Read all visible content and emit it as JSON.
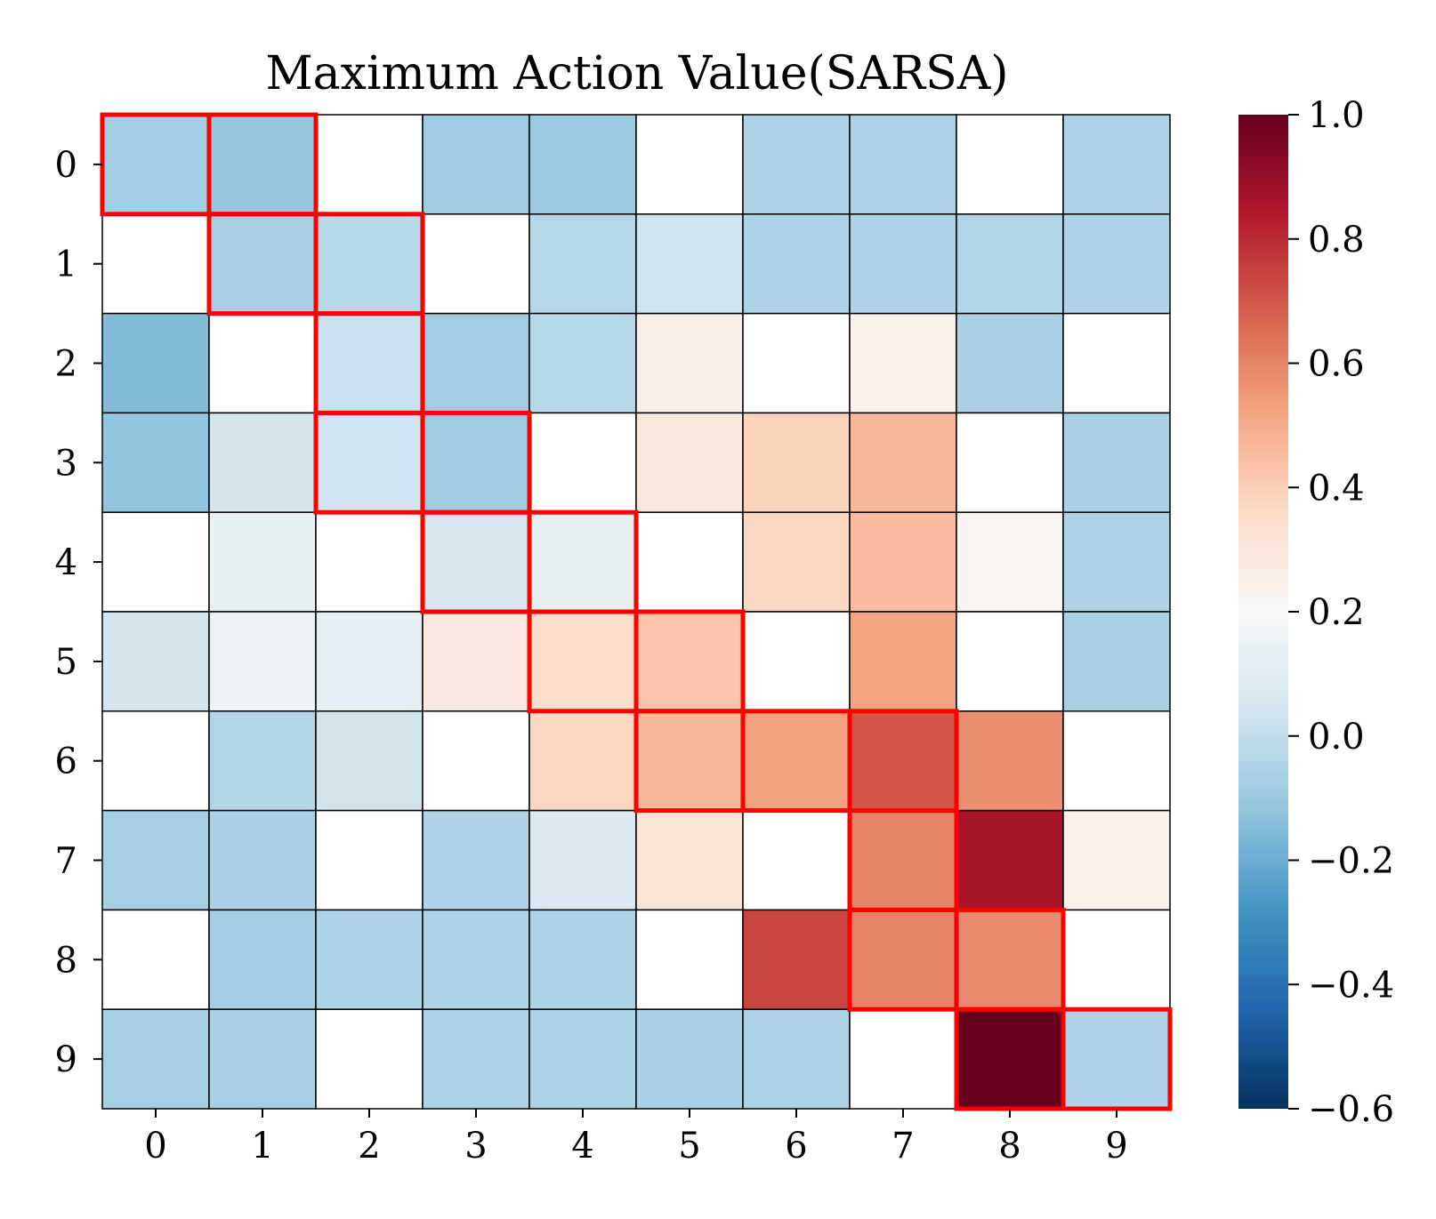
{
  "chart_data": {
    "type": "heatmap",
    "title": "Maximum Action Value(SARSA)",
    "xlabel": "",
    "ylabel": "",
    "x_categories": [
      "0",
      "1",
      "2",
      "3",
      "4",
      "5",
      "6",
      "7",
      "8",
      "9"
    ],
    "y_categories": [
      "0",
      "1",
      "2",
      "3",
      "4",
      "5",
      "6",
      "7",
      "8",
      "9"
    ],
    "values": [
      [
        -0.08,
        -0.11,
        null,
        -0.09,
        -0.1,
        null,
        -0.05,
        -0.05,
        null,
        -0.05
      ],
      [
        null,
        -0.07,
        -0.03,
        null,
        -0.03,
        0.03,
        -0.05,
        -0.05,
        -0.04,
        -0.05
      ],
      [
        -0.15,
        null,
        0.02,
        -0.08,
        -0.03,
        0.26,
        null,
        0.24,
        -0.06,
        null
      ],
      [
        -0.12,
        0.05,
        0.04,
        -0.09,
        null,
        0.29,
        0.38,
        0.46,
        null,
        -0.06
      ],
      [
        null,
        0.14,
        null,
        0.06,
        0.14,
        null,
        0.37,
        0.45,
        0.22,
        -0.05
      ],
      [
        0.05,
        0.15,
        0.13,
        0.28,
        0.34,
        0.42,
        null,
        0.52,
        null,
        -0.07
      ],
      [
        null,
        -0.04,
        0.05,
        null,
        0.37,
        0.46,
        0.53,
        0.7,
        0.57,
        null
      ],
      [
        -0.07,
        -0.06,
        null,
        -0.05,
        0.08,
        0.31,
        null,
        0.6,
        0.86,
        0.24
      ],
      [
        null,
        -0.08,
        -0.05,
        -0.05,
        -0.05,
        null,
        0.74,
        0.6,
        0.58,
        null
      ],
      [
        -0.07,
        -0.07,
        null,
        -0.05,
        -0.05,
        -0.06,
        -0.05,
        null,
        1.0,
        -0.05
      ]
    ],
    "path": [
      [
        0,
        0
      ],
      [
        0,
        1
      ],
      [
        1,
        1
      ],
      [
        1,
        2
      ],
      [
        2,
        2
      ],
      [
        3,
        2
      ],
      [
        3,
        3
      ],
      [
        4,
        3
      ],
      [
        4,
        4
      ],
      [
        5,
        4
      ],
      [
        5,
        5
      ],
      [
        6,
        5
      ],
      [
        6,
        6
      ],
      [
        6,
        7
      ],
      [
        7,
        7
      ],
      [
        8,
        7
      ],
      [
        8,
        8
      ],
      [
        9,
        8
      ],
      [
        9,
        9
      ]
    ],
    "highlight_color": "#ff0000",
    "colorbar": {
      "colormap": "RdBu_r",
      "vmin": -0.6,
      "vmax": 1.0,
      "ticks": [
        "1.0",
        "0.8",
        "0.6",
        "0.4",
        "0.2",
        "0.0",
        "−0.2",
        "−0.4",
        "−0.6"
      ],
      "tick_values": [
        1.0,
        0.8,
        0.6,
        0.4,
        0.2,
        0.0,
        -0.2,
        -0.4,
        -0.6
      ]
    },
    "grid": true
  }
}
